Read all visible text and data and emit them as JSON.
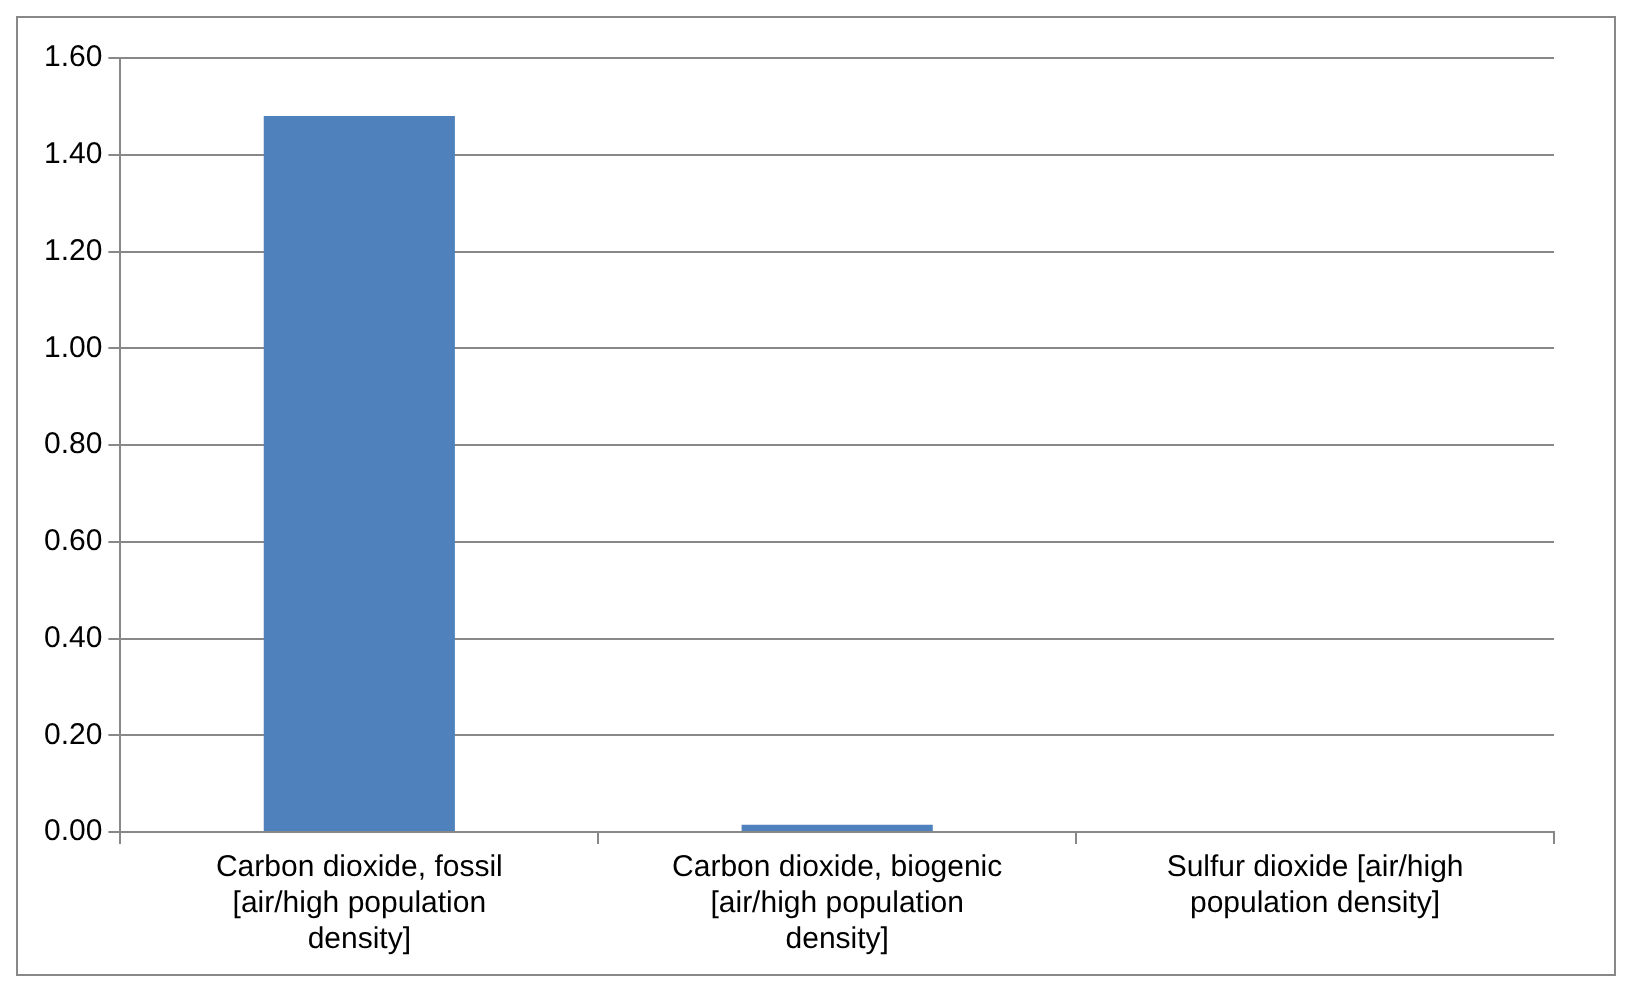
{
  "chart_data": {
    "type": "bar",
    "categories": [
      "Carbon dioxide, fossil [air/high population density]",
      "Carbon dioxide, biogenic [air/high population density]",
      "Sulfur dioxide [air/high population density]"
    ],
    "values": [
      1.48,
      0.015,
      0
    ],
    "color": "#4f81bd",
    "ylim": [
      0,
      1.6
    ],
    "yticks": [
      {
        "value": 0,
        "label": "0.00"
      },
      {
        "value": 0.2,
        "label": "0.20"
      },
      {
        "value": 0.4,
        "label": "0.40"
      },
      {
        "value": 0.6,
        "label": "0.60"
      },
      {
        "value": 0.8,
        "label": "0.80"
      },
      {
        "value": 1,
        "label": "1.00"
      },
      {
        "value": 1.2,
        "label": "1.20"
      },
      {
        "value": 1.4,
        "label": "1.40"
      },
      {
        "value": 1.6,
        "label": "1.60"
      }
    ],
    "grid": "y",
    "legend": false
  }
}
